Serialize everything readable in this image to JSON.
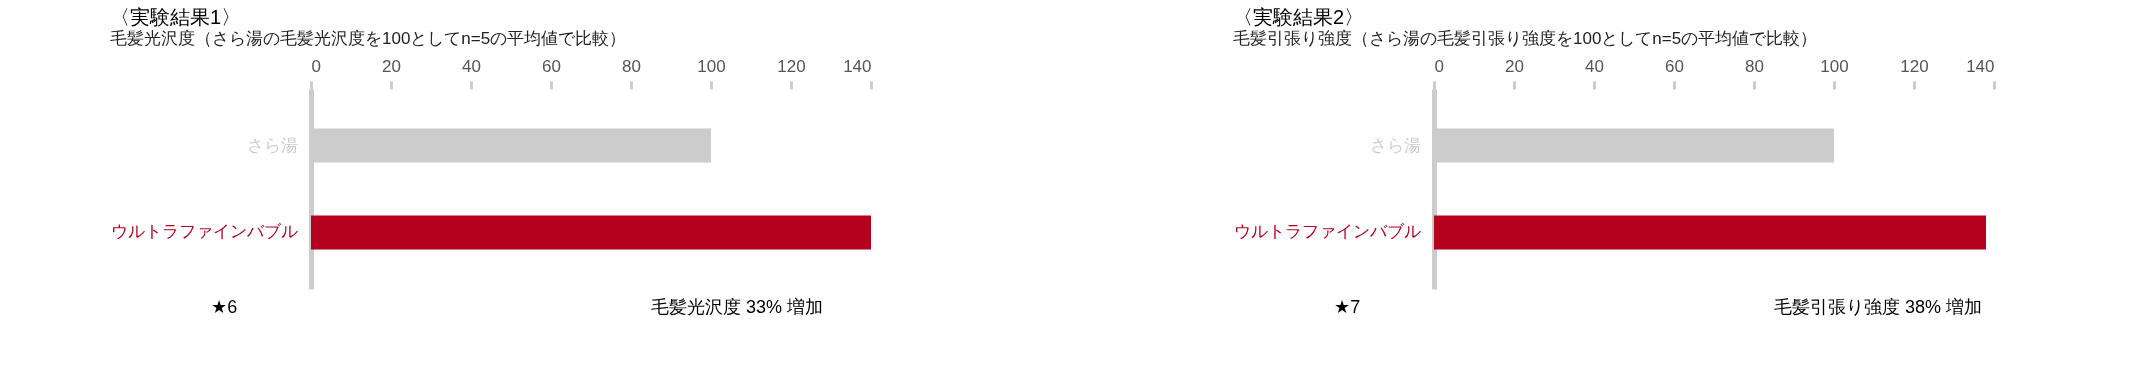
{
  "chart_data": [
    {
      "type": "bar",
      "orientation": "horizontal",
      "title": "〈実験結果1〉",
      "subtitle": "毛髪光沢度（さら湯の毛髪光沢度を100としてn=5の平均値で比較）",
      "categories": [
        "さら湯",
        "ウルトラファインバブル"
      ],
      "values": [
        100,
        140
      ],
      "colors": [
        "#cccccc",
        "#b5001e"
      ],
      "xlim": [
        0,
        140
      ],
      "xticks": [
        0,
        20,
        40,
        60,
        80,
        100,
        120,
        140
      ],
      "annotations": [
        "毛髪光沢度 33% 増加",
        "★6"
      ]
    },
    {
      "type": "bar",
      "orientation": "horizontal",
      "title": "〈実験結果2〉",
      "subtitle": "毛髪引張り強度（さら湯の毛髪引張り強度を100としてn=5の平均値で比較）",
      "categories": [
        "さら湯",
        "ウルトラファインバブル"
      ],
      "values": [
        100,
        138
      ],
      "colors": [
        "#cccccc",
        "#b5001e"
      ],
      "xlim": [
        0,
        140
      ],
      "xticks": [
        0,
        20,
        40,
        60,
        80,
        100,
        120,
        140
      ],
      "annotations": [
        "毛髪引張り強度 38% 増加",
        "★7"
      ]
    }
  ]
}
